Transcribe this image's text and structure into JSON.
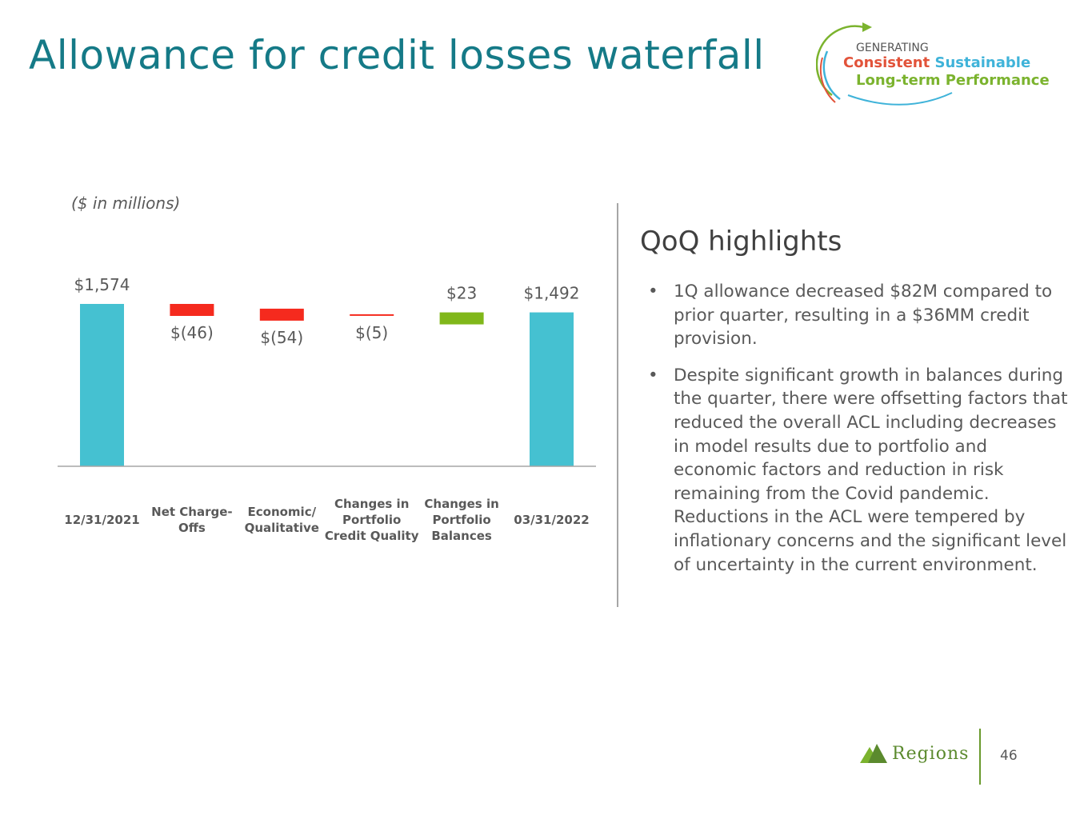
{
  "page": {
    "title": "Allowance for credit losses waterfall",
    "units_note": "($ in millions)",
    "page_number": "46"
  },
  "branding": {
    "tagline_small": "GENERATING",
    "tagline_word1": "Consistent",
    "tagline_word2": "Sustainable",
    "tagline_line3": "Long-term Performance",
    "company": "Regions",
    "colors": {
      "orange": "#e2533a",
      "blue": "#3fb3d9",
      "green": "#7bb32e",
      "brand_green": "#5b8a2e"
    }
  },
  "highlights": {
    "heading": "QoQ highlights",
    "bullets": [
      "1Q allowance decreased $82M compared to prior quarter, resulting in a $36MM credit provision.",
      "Despite significant growth in balances during the quarter, there were offsetting factors that reduced the overall ACL including decreases in model results due to portfolio and economic factors and reduction in risk remaining from the Covid pandemic. Reductions in the ACL were tempered by inflationary concerns and the significant level of uncertainty in the current environment."
    ]
  },
  "chart_data": {
    "type": "bar",
    "subtype": "waterfall",
    "title": "Allowance for credit losses waterfall",
    "ylabel": "($ in millions)",
    "xlabel": "",
    "ylim": [
      0,
      1700
    ],
    "categories": [
      [
        "12/31/2021"
      ],
      [
        "Net Charge-",
        "Offs"
      ],
      [
        "Economic/",
        "Qualitative"
      ],
      [
        "Changes in",
        "Portfolio",
        "Credit Quality"
      ],
      [
        "Changes in",
        "Portfolio",
        "Balances"
      ],
      [
        "03/31/2022"
      ]
    ],
    "values": [
      1574,
      -46,
      -54,
      -5,
      23,
      1492
    ],
    "labels": [
      "$1,574",
      "$(46)",
      "$(54)",
      "$(5)",
      "$23",
      "$1,492"
    ],
    "kinds": [
      "total",
      "delta",
      "delta",
      "delta",
      "delta",
      "total"
    ],
    "colors": {
      "total": "#45c1d1",
      "decrease": "#f52a1e",
      "increase": "#80b71a",
      "axis": "#a6a6a6"
    },
    "grid": false,
    "legend": "none"
  }
}
